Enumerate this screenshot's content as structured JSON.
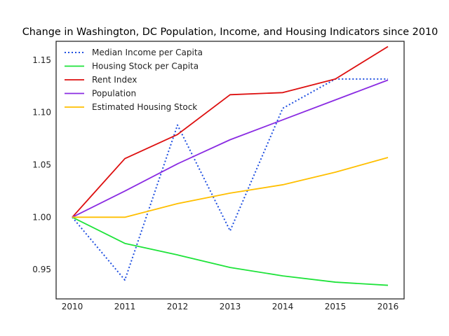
{
  "chart_data": {
    "type": "line",
    "title": "Change in Washington, DC Population, Income, and Housing Indicators since 2010",
    "xlabel": "",
    "ylabel": "",
    "x": [
      2010,
      2011,
      2012,
      2013,
      2014,
      2015,
      2016
    ],
    "x_tick_labels": [
      "2010",
      "2011",
      "2012",
      "2013",
      "2014",
      "2015",
      "2016"
    ],
    "ylim": [
      0.922,
      1.168
    ],
    "y_ticks": [
      0.95,
      1.0,
      1.05,
      1.1,
      1.15
    ],
    "y_tick_labels": [
      "0.95",
      "1.00",
      "1.05",
      "1.10",
      "1.15"
    ],
    "grid": false,
    "legend_position": "top-left",
    "series": [
      {
        "name": "Median Income per Capita",
        "color": "#1f4fe0",
        "style": "dotted",
        "values": [
          1.0,
          0.94,
          1.088,
          0.987,
          1.104,
          1.132,
          1.132
        ]
      },
      {
        "name": "Housing Stock per Capita",
        "color": "#1ee33a",
        "style": "solid",
        "values": [
          1.0,
          0.975,
          0.964,
          0.952,
          0.944,
          0.938,
          0.935
        ]
      },
      {
        "name": "Rent Index",
        "color": "#dd0f0f",
        "style": "solid",
        "values": [
          1.0,
          1.056,
          1.079,
          1.117,
          1.119,
          1.132,
          1.163
        ]
      },
      {
        "name": "Population",
        "color": "#8a2be2",
        "style": "solid",
        "values": [
          1.0,
          1.025,
          1.051,
          1.074,
          1.093,
          1.112,
          1.131
        ]
      },
      {
        "name": "Estimated Housing Stock",
        "color": "#ffbf00",
        "style": "solid",
        "values": [
          1.0,
          1.0,
          1.013,
          1.023,
          1.031,
          1.043,
          1.057
        ]
      }
    ]
  }
}
